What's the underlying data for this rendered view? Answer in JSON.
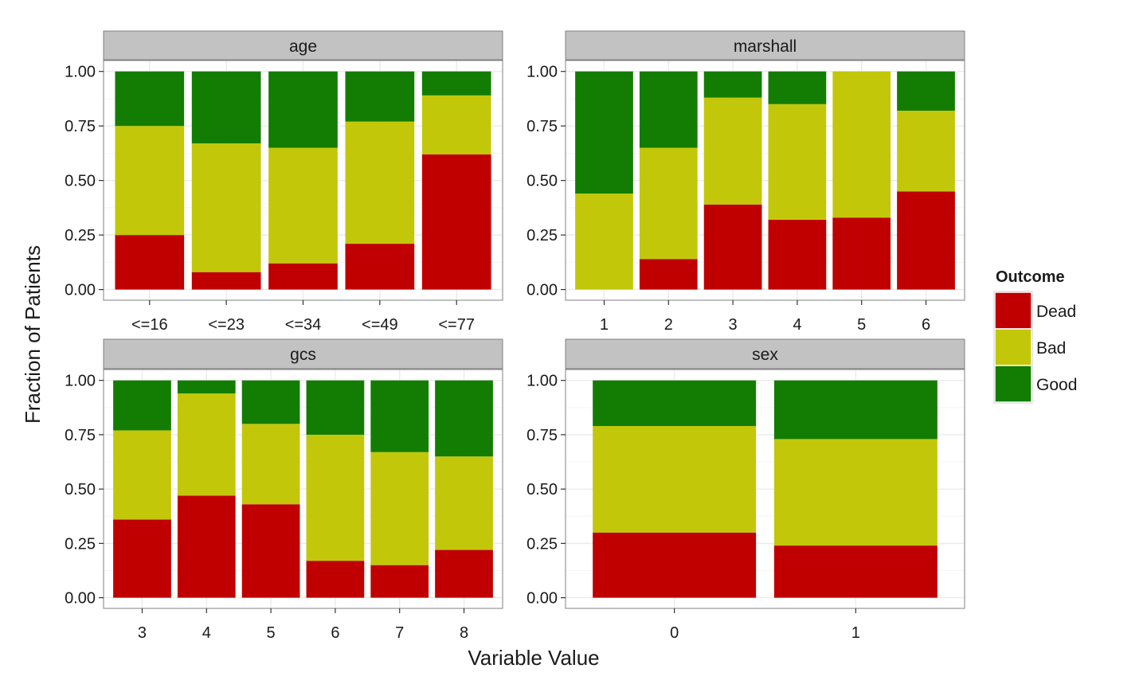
{
  "chart_data": {
    "type": "bar",
    "stacked": true,
    "facets": [
      {
        "title": "age",
        "categories": [
          "<=16",
          "<=23",
          "<=34",
          "<=49",
          "<=77"
        ],
        "series": [
          {
            "name": "Dead",
            "values": [
              0.25,
              0.08,
              0.12,
              0.21,
              0.62
            ]
          },
          {
            "name": "Bad",
            "values": [
              0.5,
              0.59,
              0.53,
              0.56,
              0.27
            ]
          },
          {
            "name": "Good",
            "values": [
              0.25,
              0.33,
              0.35,
              0.23,
              0.11
            ]
          }
        ]
      },
      {
        "title": "marshall",
        "categories": [
          "1",
          "2",
          "3",
          "4",
          "5",
          "6"
        ],
        "series": [
          {
            "name": "Dead",
            "values": [
              0.0,
              0.14,
              0.39,
              0.32,
              0.33,
              0.45
            ]
          },
          {
            "name": "Bad",
            "values": [
              0.44,
              0.51,
              0.49,
              0.53,
              0.67,
              0.37
            ]
          },
          {
            "name": "Good",
            "values": [
              0.56,
              0.35,
              0.12,
              0.15,
              0.0,
              0.18
            ]
          }
        ]
      },
      {
        "title": "gcs",
        "categories": [
          "3",
          "4",
          "5",
          "6",
          "7",
          "8"
        ],
        "series": [
          {
            "name": "Dead",
            "values": [
              0.36,
              0.47,
              0.43,
              0.17,
              0.15,
              0.22
            ]
          },
          {
            "name": "Bad",
            "values": [
              0.41,
              0.47,
              0.37,
              0.58,
              0.52,
              0.43
            ]
          },
          {
            "name": "Good",
            "values": [
              0.23,
              0.06,
              0.2,
              0.25,
              0.33,
              0.35
            ]
          }
        ]
      },
      {
        "title": "sex",
        "categories": [
          "0",
          "1"
        ],
        "series": [
          {
            "name": "Dead",
            "values": [
              0.3,
              0.24
            ]
          },
          {
            "name": "Bad",
            "values": [
              0.49,
              0.49
            ]
          },
          {
            "name": "Good",
            "values": [
              0.21,
              0.27
            ]
          }
        ]
      }
    ],
    "ylim": [
      0,
      1
    ],
    "yticks": [
      "0.00",
      "0.25",
      "0.50",
      "0.75",
      "1.00"
    ],
    "xlabel": "Variable Value",
    "ylabel": "Fraction of Patients",
    "legend": {
      "title": "Outcome",
      "position": "right",
      "entries": [
        {
          "name": "Dead",
          "color": "#c00000"
        },
        {
          "name": "Bad",
          "color": "#c3c709"
        },
        {
          "name": "Good",
          "color": "#127d02"
        }
      ]
    },
    "grid": true,
    "strip_background": "#c2c2c2"
  }
}
